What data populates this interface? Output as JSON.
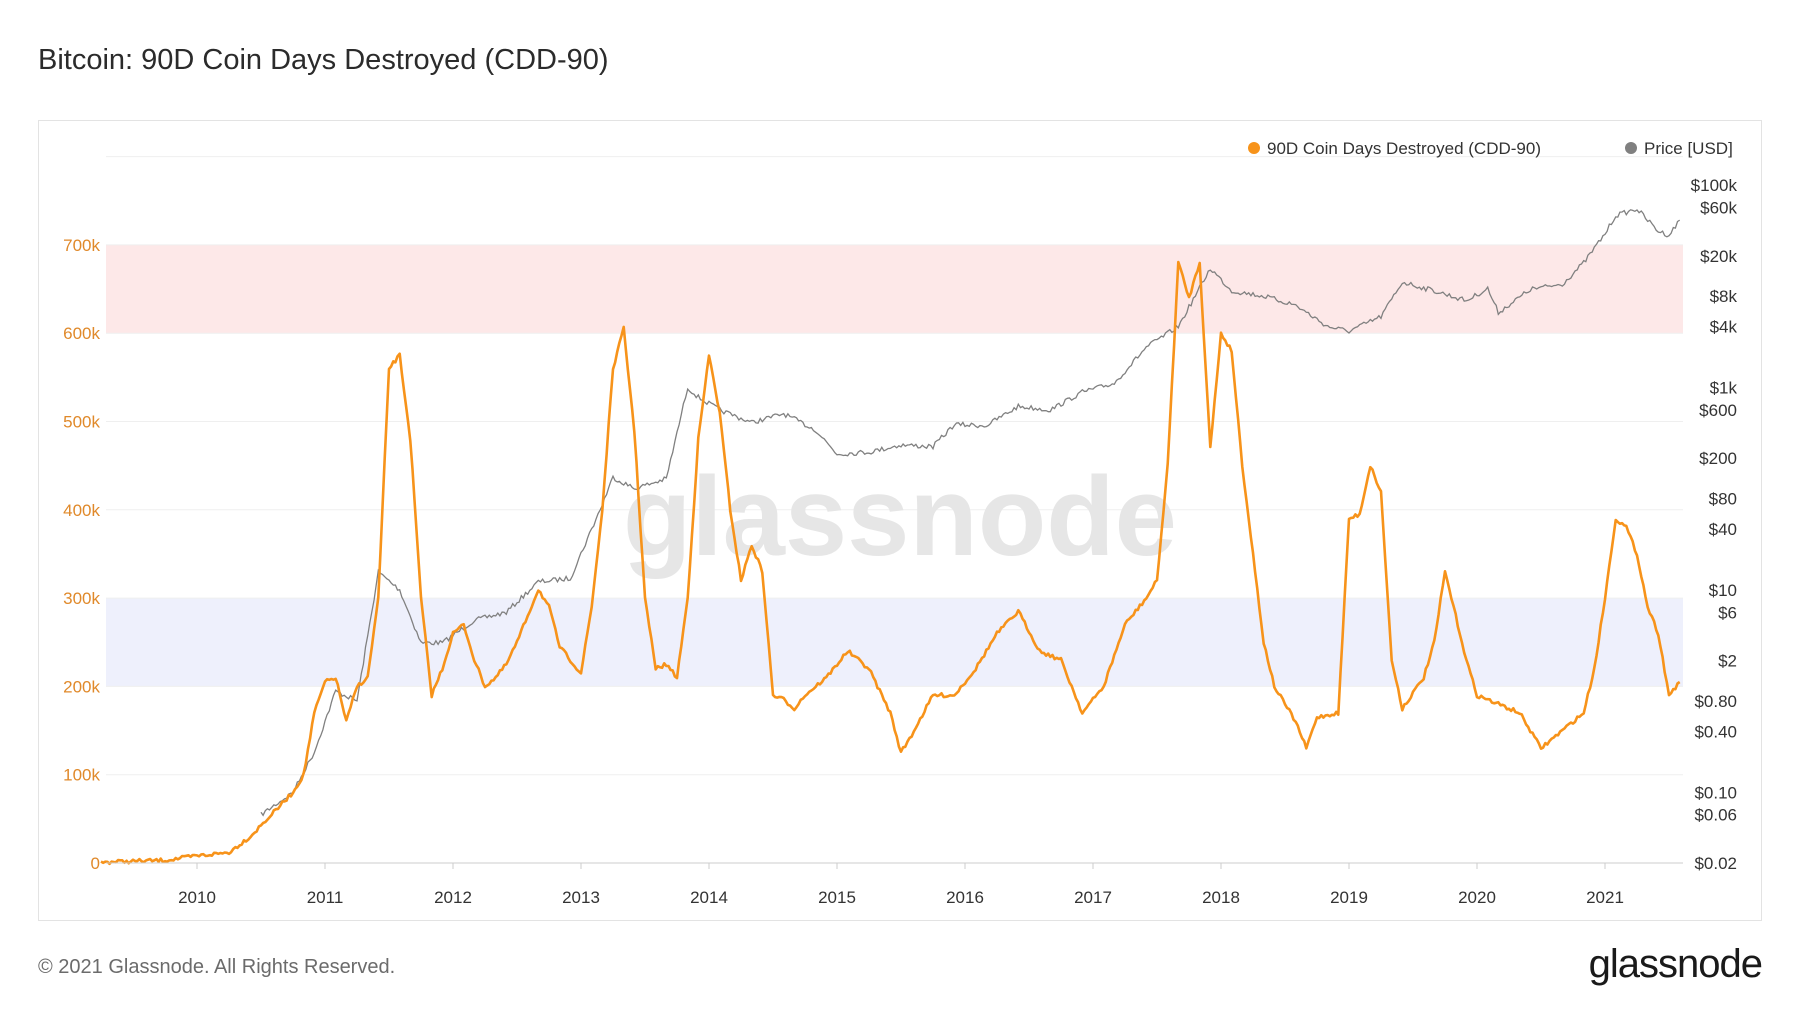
{
  "title": "Bitcoin: 90D Coin Days Destroyed (CDD-90)",
  "footer": "© 2021 Glassnode. All Rights Reserved.",
  "logo": "glassnode",
  "watermark": "glassnode",
  "chart_data": {
    "type": "line",
    "title": "Bitcoin: 90D Coin Days Destroyed (CDD-90)",
    "legend": {
      "placement": "top-right",
      "entries": [
        "90D Coin Days Destroyed (CDD-90)",
        "Price [USD]"
      ]
    },
    "colors": {
      "cdd": "#f7931a",
      "price": "#808080",
      "band_high": "#fde8e8",
      "band_low": "#eef0fc",
      "left_axis": "#e0892a"
    },
    "x_ticks": [
      "2010",
      "2011",
      "2012",
      "2013",
      "2014",
      "2015",
      "2016",
      "2017",
      "2018",
      "2019",
      "2020",
      "2021"
    ],
    "xlim": [
      "2009-04",
      "2021-08"
    ],
    "y_left": {
      "ticks": [
        "0",
        "100k",
        "200k",
        "300k",
        "400k",
        "500k",
        "600k",
        "700k"
      ],
      "ylim": [
        0,
        800000
      ],
      "scale": "linear"
    },
    "y_right": {
      "ticks": [
        "$100k",
        "$60k",
        "$20k",
        "$8k",
        "$4k",
        "$1k",
        "$600",
        "$200",
        "$80",
        "$40",
        "$10",
        "$6",
        "$2",
        "$0.80",
        "$0.40",
        "$0.10",
        "$0.06",
        "$0.02"
      ],
      "ylim": [
        0.02,
        100000
      ],
      "scale": "log"
    },
    "bands": [
      {
        "from": 600000,
        "to": 700000,
        "color": "#fde8e8"
      },
      {
        "from": 200000,
        "to": 300000,
        "color": "#eef0fc"
      }
    ],
    "grid": true,
    "series": [
      {
        "name": "90D Coin Days Destroyed (CDD-90)",
        "axis": "left",
        "points": [
          [
            "2009-04",
            1000
          ],
          [
            "2009-07",
            2000
          ],
          [
            "2009-10",
            3000
          ],
          [
            "2010-01",
            8000
          ],
          [
            "2010-04",
            12000
          ],
          [
            "2010-06",
            30000
          ],
          [
            "2010-08",
            55000
          ],
          [
            "2010-10",
            80000
          ],
          [
            "2010-11",
            100000
          ],
          [
            "2010-12",
            170000
          ],
          [
            "2011-01",
            205000
          ],
          [
            "2011-02",
            210000
          ],
          [
            "2011-03",
            160000
          ],
          [
            "2011-04",
            200000
          ],
          [
            "2011-05",
            210000
          ],
          [
            "2011-06",
            300000
          ],
          [
            "2011-07",
            560000
          ],
          [
            "2011-08",
            575000
          ],
          [
            "2011-09",
            480000
          ],
          [
            "2011-10",
            300000
          ],
          [
            "2011-11",
            190000
          ],
          [
            "2011-12",
            220000
          ],
          [
            "2012-01",
            260000
          ],
          [
            "2012-02",
            270000
          ],
          [
            "2012-03",
            230000
          ],
          [
            "2012-04",
            200000
          ],
          [
            "2012-05",
            210000
          ],
          [
            "2012-06",
            225000
          ],
          [
            "2012-07",
            250000
          ],
          [
            "2012-08",
            280000
          ],
          [
            "2012-09",
            310000
          ],
          [
            "2012-10",
            290000
          ],
          [
            "2012-11",
            245000
          ],
          [
            "2013-01",
            215000
          ],
          [
            "2013-02",
            290000
          ],
          [
            "2013-03",
            400000
          ],
          [
            "2013-04",
            560000
          ],
          [
            "2013-05",
            605000
          ],
          [
            "2013-06",
            490000
          ],
          [
            "2013-07",
            300000
          ],
          [
            "2013-08",
            220000
          ],
          [
            "2013-09",
            225000
          ],
          [
            "2013-10",
            210000
          ],
          [
            "2013-11",
            300000
          ],
          [
            "2013-12",
            480000
          ],
          [
            "2014-01",
            575000
          ],
          [
            "2014-02",
            510000
          ],
          [
            "2014-03",
            400000
          ],
          [
            "2014-04",
            320000
          ],
          [
            "2014-05",
            360000
          ],
          [
            "2014-06",
            330000
          ],
          [
            "2014-07",
            190000
          ],
          [
            "2014-08",
            185000
          ],
          [
            "2014-09",
            175000
          ],
          [
            "2014-10",
            190000
          ],
          [
            "2014-12",
            210000
          ],
          [
            "2015-02",
            240000
          ],
          [
            "2015-04",
            220000
          ],
          [
            "2015-06",
            170000
          ],
          [
            "2015-07",
            125000
          ],
          [
            "2015-08",
            145000
          ],
          [
            "2015-10",
            190000
          ],
          [
            "2015-12",
            190000
          ],
          [
            "2016-02",
            220000
          ],
          [
            "2016-04",
            260000
          ],
          [
            "2016-06",
            285000
          ],
          [
            "2016-08",
            240000
          ],
          [
            "2016-10",
            230000
          ],
          [
            "2016-12",
            170000
          ],
          [
            "2017-02",
            200000
          ],
          [
            "2017-04",
            270000
          ],
          [
            "2017-06",
            300000
          ],
          [
            "2017-07",
            320000
          ],
          [
            "2017-08",
            450000
          ],
          [
            "2017-09",
            680000
          ],
          [
            "2017-10",
            640000
          ],
          [
            "2017-11",
            680000
          ],
          [
            "2017-12",
            470000
          ],
          [
            "2018-01",
            600000
          ],
          [
            "2018-02",
            580000
          ],
          [
            "2018-03",
            450000
          ],
          [
            "2018-04",
            350000
          ],
          [
            "2018-05",
            250000
          ],
          [
            "2018-06",
            200000
          ],
          [
            "2018-08",
            160000
          ],
          [
            "2018-09",
            130000
          ],
          [
            "2018-10",
            165000
          ],
          [
            "2018-12",
            170000
          ],
          [
            "2019-01",
            390000
          ],
          [
            "2019-02",
            395000
          ],
          [
            "2019-03",
            450000
          ],
          [
            "2019-04",
            420000
          ],
          [
            "2019-05",
            230000
          ],
          [
            "2019-06",
            175000
          ],
          [
            "2019-08",
            210000
          ],
          [
            "2019-09",
            250000
          ],
          [
            "2019-10",
            330000
          ],
          [
            "2019-11",
            280000
          ],
          [
            "2019-12",
            230000
          ],
          [
            "2020-01",
            190000
          ],
          [
            "2020-03",
            180000
          ],
          [
            "2020-05",
            170000
          ],
          [
            "2020-07",
            130000
          ],
          [
            "2020-09",
            150000
          ],
          [
            "2020-11",
            170000
          ],
          [
            "2020-12",
            220000
          ],
          [
            "2021-01",
            300000
          ],
          [
            "2021-02",
            390000
          ],
          [
            "2021-03",
            380000
          ],
          [
            "2021-04",
            350000
          ],
          [
            "2021-05",
            290000
          ],
          [
            "2021-06",
            260000
          ],
          [
            "2021-07",
            190000
          ],
          [
            "2021-08",
            205000
          ]
        ]
      },
      {
        "name": "Price [USD]",
        "axis": "right",
        "points": [
          [
            "2010-07",
            0.06
          ],
          [
            "2010-10",
            0.1
          ],
          [
            "2010-12",
            0.25
          ],
          [
            "2011-02",
            1
          ],
          [
            "2011-04",
            0.8
          ],
          [
            "2011-06",
            15
          ],
          [
            "2011-08",
            10
          ],
          [
            "2011-10",
            3
          ],
          [
            "2011-12",
            3
          ],
          [
            "2012-03",
            5
          ],
          [
            "2012-06",
            6
          ],
          [
            "2012-09",
            12
          ],
          [
            "2012-12",
            13
          ],
          [
            "2013-03",
            70
          ],
          [
            "2013-04",
            130
          ],
          [
            "2013-06",
            100
          ],
          [
            "2013-09",
            125
          ],
          [
            "2013-11",
            1000
          ],
          [
            "2013-12",
            800
          ],
          [
            "2014-02",
            600
          ],
          [
            "2014-05",
            450
          ],
          [
            "2014-08",
            550
          ],
          [
            "2014-11",
            380
          ],
          [
            "2015-01",
            220
          ],
          [
            "2015-04",
            230
          ],
          [
            "2015-07",
            270
          ],
          [
            "2015-10",
            260
          ],
          [
            "2015-12",
            430
          ],
          [
            "2016-03",
            420
          ],
          [
            "2016-06",
            650
          ],
          [
            "2016-09",
            600
          ],
          [
            "2016-12",
            900
          ],
          [
            "2017-03",
            1100
          ],
          [
            "2017-06",
            2500
          ],
          [
            "2017-09",
            4000
          ],
          [
            "2017-12",
            15000
          ],
          [
            "2018-02",
            9000
          ],
          [
            "2018-05",
            8000
          ],
          [
            "2018-08",
            6500
          ],
          [
            "2018-11",
            4000
          ],
          [
            "2019-01",
            3600
          ],
          [
            "2019-04",
            5000
          ],
          [
            "2019-06",
            11000
          ],
          [
            "2019-09",
            9000
          ],
          [
            "2019-12",
            7200
          ],
          [
            "2020-02",
            9500
          ],
          [
            "2020-03",
            5500
          ],
          [
            "2020-06",
            9300
          ],
          [
            "2020-09",
            10500
          ],
          [
            "2020-11",
            17000
          ],
          [
            "2021-01",
            33000
          ],
          [
            "2021-02",
            50000
          ],
          [
            "2021-04",
            58000
          ],
          [
            "2021-06",
            35000
          ],
          [
            "2021-07",
            32000
          ],
          [
            "2021-08",
            45000
          ]
        ]
      }
    ]
  }
}
